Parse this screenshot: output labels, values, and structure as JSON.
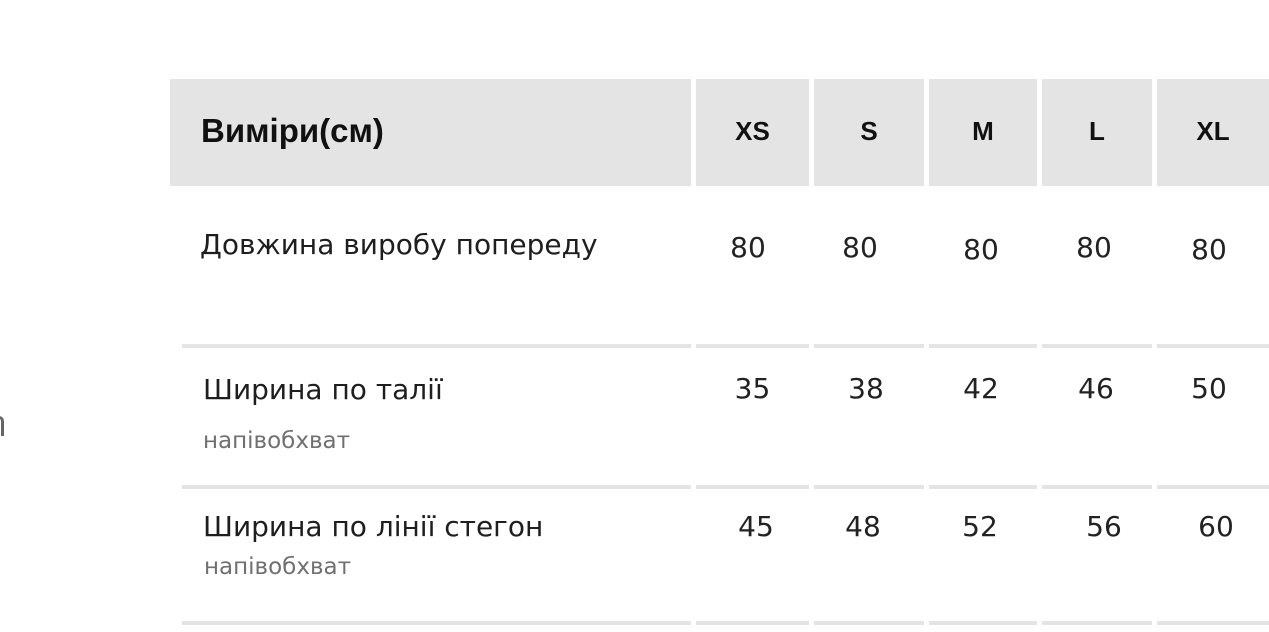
{
  "table": {
    "header": "Виміри(см)",
    "sizes": [
      "XS",
      "S",
      "M",
      "L",
      "XL"
    ],
    "rows": [
      {
        "label": "Довжина виробу попереду",
        "sublabel": "",
        "values": [
          "80",
          "80",
          "80",
          "80",
          "80"
        ]
      },
      {
        "label": "Ширина по талії",
        "sublabel": "напівобхват",
        "values": [
          "35",
          "38",
          "42",
          "46",
          "50"
        ]
      },
      {
        "label": "Ширина по лінії стегон",
        "sublabel": "напівобхват",
        "values": [
          "45",
          "48",
          "52",
          "56",
          "60"
        ]
      }
    ]
  }
}
